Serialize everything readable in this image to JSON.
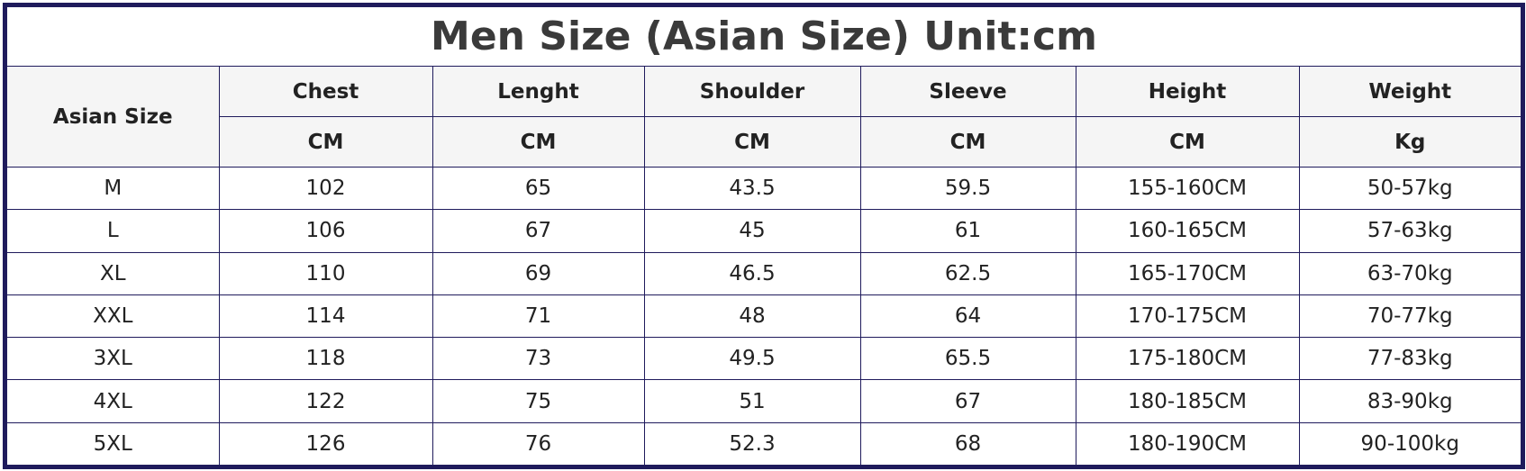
{
  "title": "Men Size (Asian Size) Unit:cm",
  "size_header": "Asian Size",
  "columns": [
    {
      "label": "Chest",
      "unit": "CM"
    },
    {
      "label": "Lenght",
      "unit": "CM"
    },
    {
      "label": "Shoulder",
      "unit": "CM"
    },
    {
      "label": "Sleeve",
      "unit": "CM"
    },
    {
      "label": "Height",
      "unit": "CM"
    },
    {
      "label": "Weight",
      "unit": "Kg"
    }
  ],
  "rows": [
    [
      "M",
      "102",
      "65",
      "43.5",
      "59.5",
      "155-160CM",
      "50-57kg"
    ],
    [
      "L",
      "106",
      "67",
      "45",
      "61",
      "160-165CM",
      "57-63kg"
    ],
    [
      "XL",
      "110",
      "69",
      "46.5",
      "62.5",
      "165-170CM",
      "63-70kg"
    ],
    [
      "XXL",
      "114",
      "71",
      "48",
      "64",
      "170-175CM",
      "70-77kg"
    ],
    [
      "3XL",
      "118",
      "73",
      "49.5",
      "65.5",
      "175-180CM",
      "77-83kg"
    ],
    [
      "4XL",
      "122",
      "75",
      "51",
      "67",
      "180-185CM",
      "83-90kg"
    ],
    [
      "5XL",
      "126",
      "76",
      "52.3",
      "68",
      "180-190CM",
      "90-100kg"
    ]
  ],
  "colors": {
    "border": "#1f1b5c",
    "header_bg": "#f5f5f5"
  }
}
